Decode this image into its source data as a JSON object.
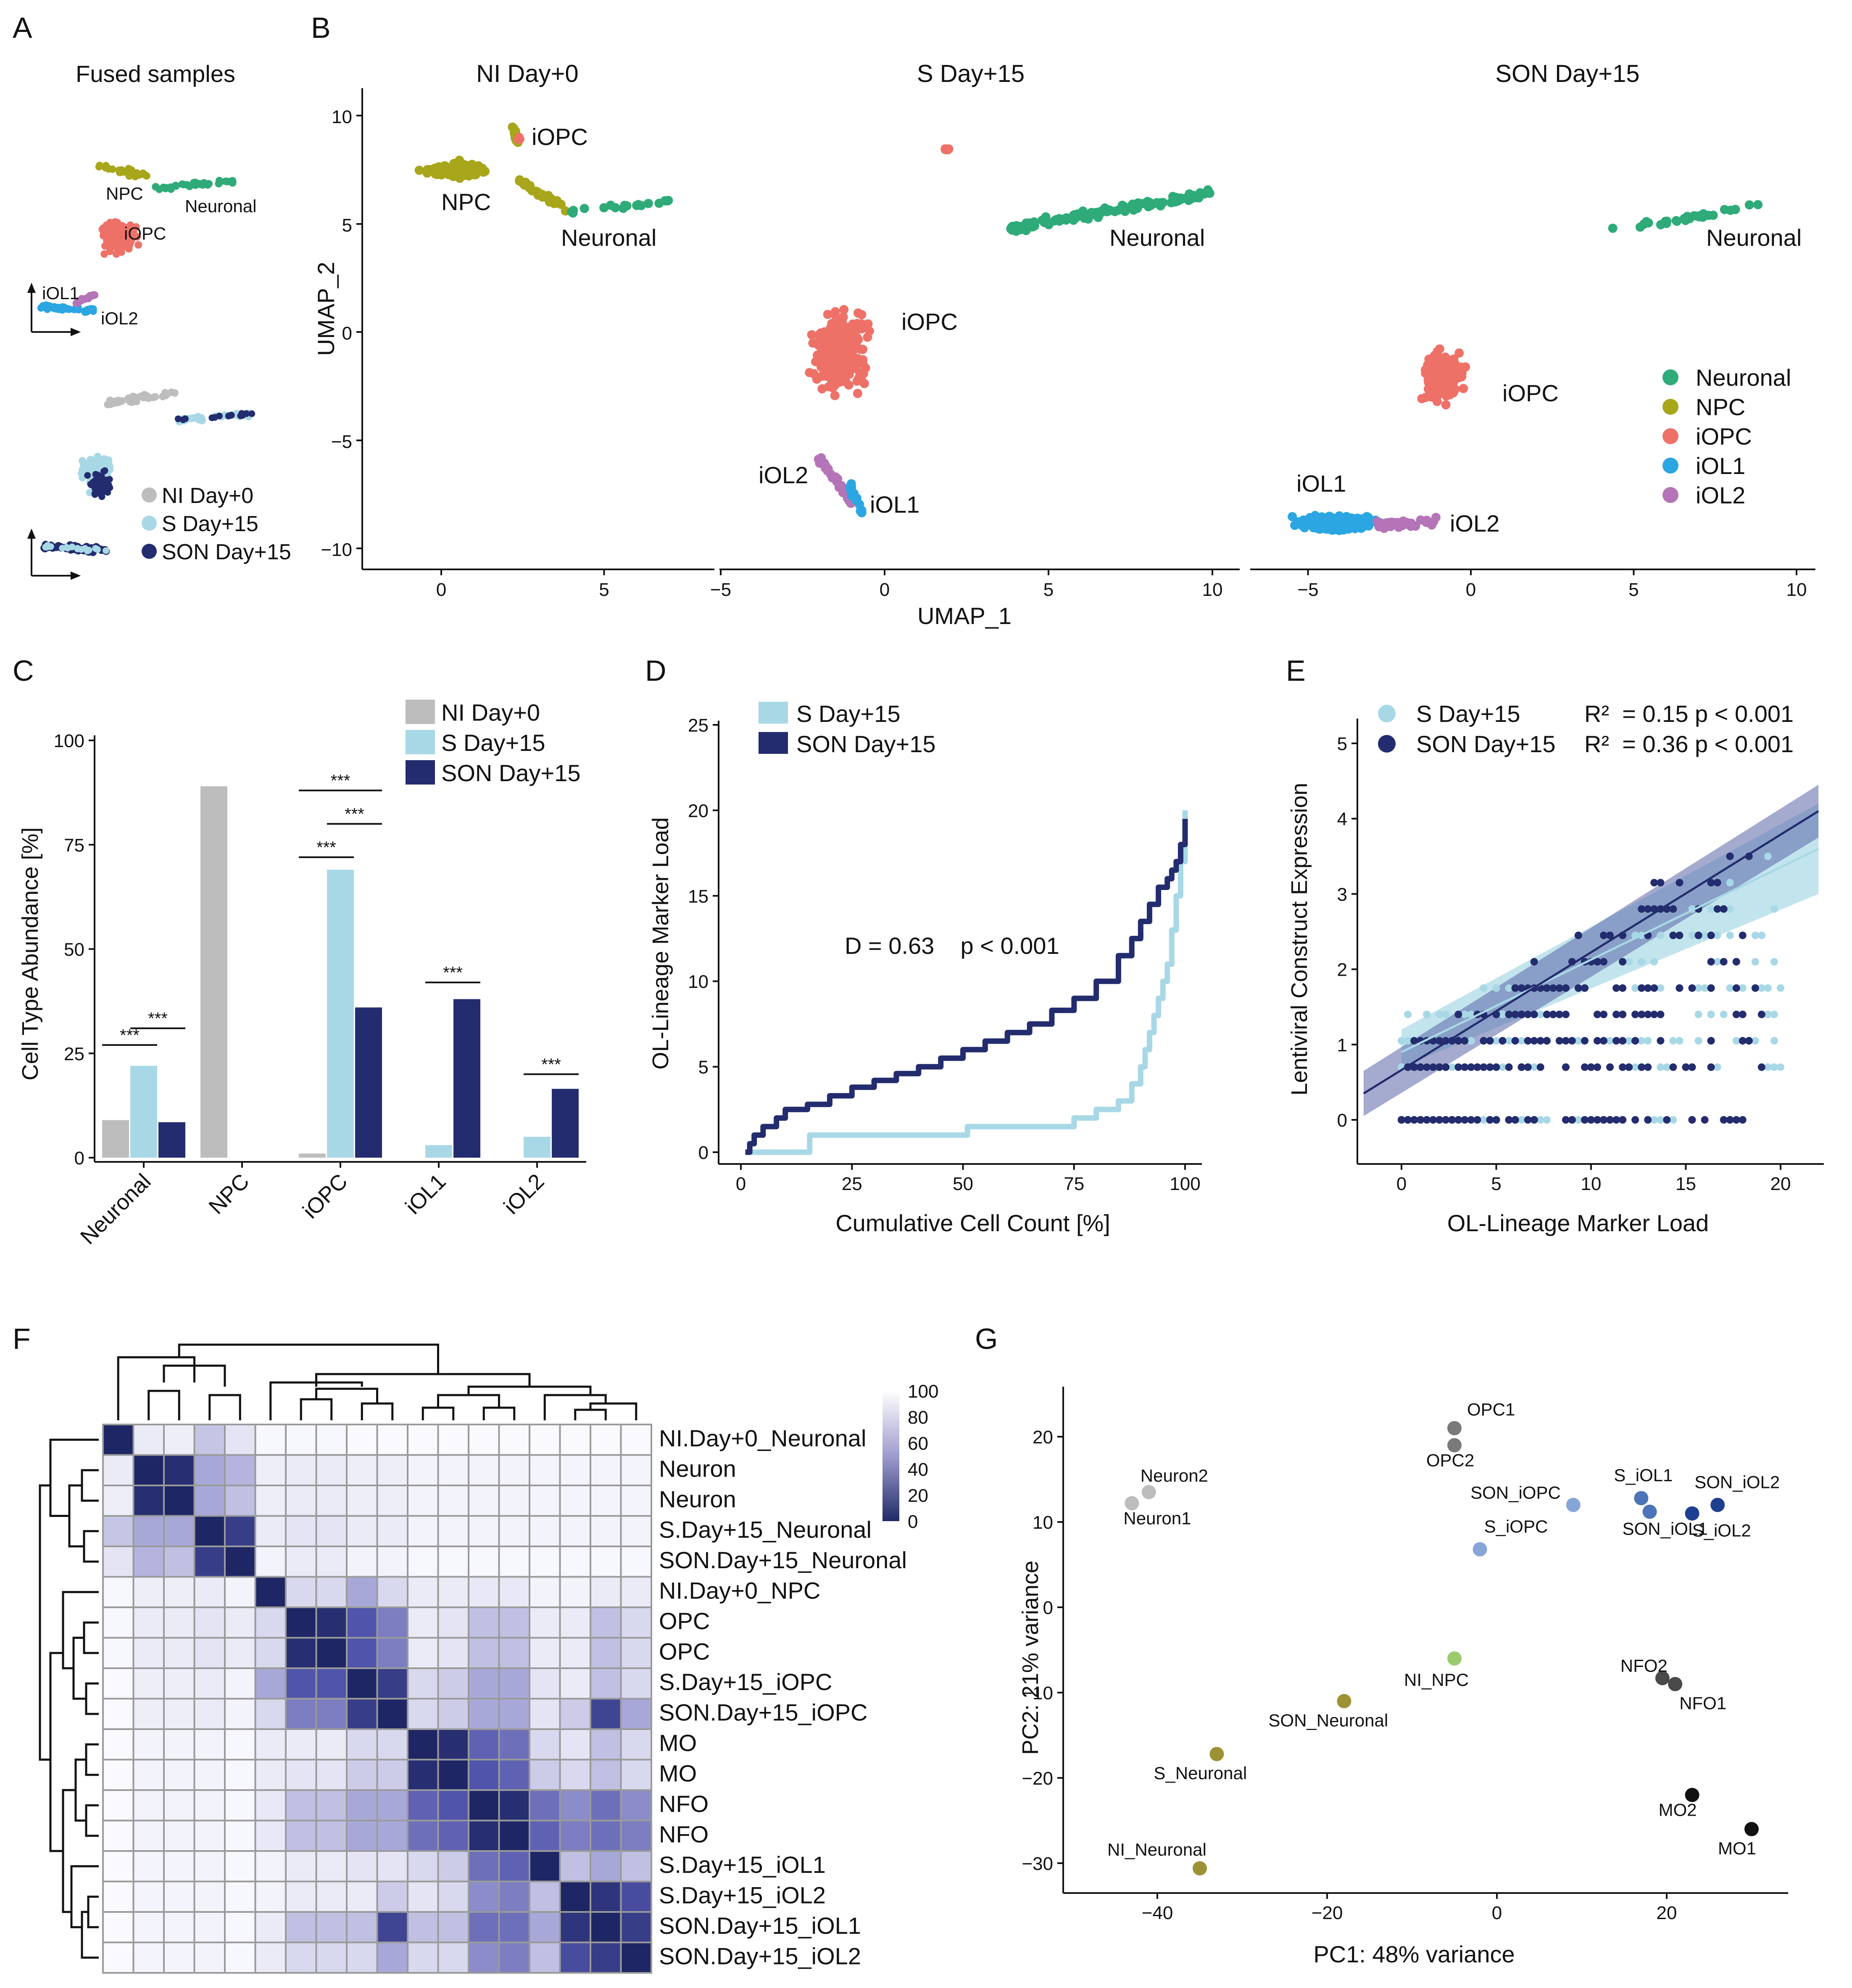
{
  "panels": {
    "A": "A",
    "B": "B",
    "C": "C",
    "D": "D",
    "E": "E",
    "F": "F",
    "G": "G"
  },
  "panelA": {
    "title": "Fused samples",
    "cluster_labels": [
      "NPC",
      "Neuronal",
      "iOPC",
      "iOL1",
      "iOL2"
    ],
    "legend": [
      "NI Day+0",
      "S Day+15",
      "SON Day+15"
    ]
  },
  "panelB": {
    "subtitles": [
      "NI Day+0",
      "S Day+15",
      "SON Day+15"
    ],
    "xlabel": "UMAP_1",
    "ylabel": "UMAP_2",
    "yticks": [
      10,
      5,
      0,
      -5,
      -10
    ],
    "xticks": [
      [
        0,
        5
      ],
      [
        -5,
        0,
        5,
        10
      ],
      [
        -5,
        0,
        5,
        10
      ]
    ],
    "cluster_labels": [
      [
        "iOPC",
        "NPC",
        "Neuronal"
      ],
      [
        "Neuronal",
        "iOPC",
        "iOL2",
        "iOL1"
      ],
      [
        "Neuronal",
        "iOPC",
        "iOL1",
        "iOL2"
      ]
    ],
    "legend": [
      "Neuronal",
      "NPC",
      "iOPC",
      "iOL1",
      "iOL2"
    ]
  },
  "colors": {
    "Neuronal": "#2eab78",
    "NPC": "#a8a61a",
    "iOPC": "#ee7168",
    "iOL1": "#2ba6e2",
    "iOL2": "#b574b7",
    "NI": "#bdbdbd",
    "S": "#a8d8e6",
    "SON": "#232c6e"
  },
  "chart_data": [
    {
      "type": "bar",
      "panel": "C",
      "categories": [
        "Neuronal",
        "NPC",
        "iOPC",
        "iOL1",
        "iOL2"
      ],
      "series": [
        {
          "name": "NI Day+0",
          "values": [
            9,
            89,
            1,
            0,
            0
          ]
        },
        {
          "name": "S Day+15",
          "values": [
            22,
            0,
            69,
            3,
            5
          ]
        },
        {
          "name": "SON Day+15",
          "values": [
            8.5,
            0,
            36,
            38,
            16.5
          ]
        }
      ],
      "ylabel": "Cell Type Abundance [%]",
      "yticks": [
        0,
        25,
        50,
        75,
        100
      ],
      "ylim": [
        0,
        100
      ],
      "significance": "***",
      "legend_position": "top-right"
    },
    {
      "type": "line",
      "panel": "D",
      "xlabel": "Cumulative Cell Count [%]",
      "ylabel": "OL-Lineage Marker Load",
      "xticks": [
        0,
        25,
        50,
        75,
        100
      ],
      "yticks": [
        0,
        5,
        10,
        15,
        20,
        25
      ],
      "xlim": [
        0,
        100
      ],
      "ylim": [
        0,
        25
      ],
      "annotation": "D = 0.63    p < 0.001",
      "series": [
        {
          "name": "S Day+15",
          "x": [
            1,
            15,
            15.5,
            50,
            51,
            70,
            75,
            80,
            85,
            88,
            90,
            91,
            92,
            93,
            94,
            95,
            96,
            97,
            98,
            99,
            100
          ],
          "y": [
            0,
            0,
            1,
            1,
            1.5,
            1.5,
            2,
            2.5,
            3,
            4,
            5,
            6,
            7,
            8,
            9,
            10,
            11,
            13,
            15,
            17,
            20
          ]
        },
        {
          "name": "SON Day+15",
          "x": [
            1,
            2,
            3,
            5,
            8,
            10,
            15,
            20,
            25,
            30,
            35,
            40,
            45,
            50,
            55,
            60,
            65,
            70,
            75,
            80,
            85,
            88,
            90,
            92,
            94,
            96,
            97,
            98,
            99,
            100
          ],
          "y": [
            0,
            0.5,
            1,
            1.5,
            2,
            2.5,
            2.8,
            3.3,
            3.8,
            4.2,
            4.6,
            5,
            5.5,
            6,
            6.5,
            7,
            7.5,
            8.3,
            9,
            10,
            11.5,
            12.5,
            13.5,
            14.5,
            15.5,
            16,
            16.5,
            17,
            18,
            19.5
          ]
        }
      ],
      "legend_position": "top-left"
    },
    {
      "type": "scatter",
      "panel": "E",
      "xlabel": "OL-Lineage Marker Load",
      "ylabel": "Lentiviral Construct Expression",
      "xticks": [
        0,
        5,
        10,
        15,
        20
      ],
      "yticks": [
        0,
        1,
        2,
        3,
        4,
        5
      ],
      "xlim": [
        -2,
        22.2
      ],
      "ylim": [
        -0.25,
        5.5
      ],
      "series": [
        {
          "name": "S Day+15",
          "stat": "R²  = 0.15 p < 0.001",
          "fit": [
            [
              0,
              0.9
            ],
            [
              22,
              3.6
            ]
          ]
        },
        {
          "name": "SON Day+15",
          "stat": "R²  = 0.36 p < 0.001",
          "fit": [
            [
              -2,
              0.35
            ],
            [
              22,
              4.1
            ]
          ]
        }
      ],
      "legend_position": "top-left"
    },
    {
      "type": "heatmap",
      "panel": "F",
      "row_labels": [
        "NI.Day+0_Neuronal",
        "Neuron",
        "Neuron",
        "S.Day+15_Neuronal",
        "SON.Day+15_Neuronal",
        "NI.Day+0_NPC",
        "OPC",
        "OPC",
        "S.Day+15_iOPC",
        "SON.Day+15_iOPC",
        "MO",
        "MO",
        "NFO",
        "NFO",
        "S.Day+15_iOL1",
        "S.Day+15_iOL2",
        "SON.Day+15_iOL1",
        "SON.Day+15_iOL2"
      ],
      "colorbar_ticks": [
        100,
        80,
        60,
        40,
        20,
        0
      ],
      "values": [
        [
          0,
          90,
          92,
          72,
          85,
          98,
          98,
          98,
          99,
          99,
          99,
          99,
          99,
          99,
          99,
          99,
          99,
          99
        ],
        [
          90,
          0,
          5,
          60,
          65,
          92,
          90,
          90,
          92,
          92,
          95,
          95,
          95,
          95,
          96,
          96,
          96,
          96
        ],
        [
          92,
          5,
          0,
          60,
          70,
          92,
          90,
          90,
          92,
          92,
          95,
          95,
          95,
          95,
          96,
          96,
          96,
          96
        ],
        [
          72,
          60,
          60,
          0,
          15,
          90,
          85,
          85,
          90,
          90,
          95,
          95,
          95,
          95,
          95,
          95,
          95,
          95
        ],
        [
          85,
          65,
          70,
          15,
          0,
          95,
          90,
          90,
          95,
          95,
          98,
          98,
          98,
          98,
          98,
          98,
          98,
          98
        ],
        [
          98,
          92,
          92,
          90,
          95,
          0,
          80,
          80,
          60,
          80,
          90,
          90,
          88,
          88,
          95,
          95,
          90,
          90
        ],
        [
          98,
          90,
          90,
          85,
          90,
          80,
          0,
          5,
          30,
          45,
          90,
          85,
          70,
          70,
          90,
          90,
          70,
          80
        ],
        [
          98,
          90,
          90,
          85,
          90,
          80,
          5,
          0,
          30,
          45,
          90,
          85,
          70,
          70,
          90,
          90,
          70,
          80
        ],
        [
          99,
          92,
          92,
          90,
          95,
          60,
          30,
          30,
          0,
          15,
          80,
          75,
          60,
          60,
          85,
          90,
          70,
          80
        ],
        [
          99,
          92,
          92,
          90,
          95,
          80,
          45,
          45,
          15,
          0,
          80,
          75,
          60,
          60,
          85,
          75,
          20,
          60
        ],
        [
          99,
          95,
          95,
          95,
          98,
          90,
          90,
          90,
          80,
          80,
          0,
          5,
          35,
          40,
          80,
          85,
          70,
          80
        ],
        [
          99,
          95,
          95,
          95,
          98,
          90,
          85,
          85,
          75,
          75,
          5,
          0,
          30,
          35,
          75,
          80,
          70,
          80
        ],
        [
          99,
          95,
          95,
          95,
          98,
          88,
          70,
          70,
          60,
          60,
          35,
          30,
          0,
          5,
          40,
          50,
          40,
          50
        ],
        [
          99,
          95,
          95,
          95,
          98,
          88,
          70,
          70,
          60,
          60,
          40,
          35,
          5,
          0,
          35,
          45,
          40,
          45
        ],
        [
          99,
          96,
          96,
          95,
          98,
          95,
          90,
          90,
          85,
          85,
          80,
          75,
          40,
          35,
          0,
          70,
          60,
          70
        ],
        [
          99,
          96,
          96,
          95,
          98,
          95,
          90,
          90,
          90,
          75,
          85,
          80,
          50,
          45,
          70,
          0,
          10,
          25
        ],
        [
          99,
          96,
          96,
          95,
          98,
          90,
          70,
          70,
          70,
          20,
          70,
          70,
          40,
          40,
          60,
          10,
          0,
          15
        ],
        [
          99,
          96,
          96,
          95,
          98,
          90,
          80,
          80,
          80,
          60,
          80,
          80,
          50,
          45,
          70,
          25,
          15,
          0
        ]
      ]
    },
    {
      "type": "scatter",
      "panel": "G",
      "xlabel": "PC1: 48% variance",
      "ylabel": "PC2: 21% variance",
      "xticks": [
        -40,
        -20,
        0,
        20
      ],
      "yticks": [
        20,
        10,
        0,
        -10,
        -20,
        -30
      ],
      "xlim": [
        -46,
        34
      ],
      "ylim": [
        -33,
        24
      ],
      "points": [
        {
          "label": "OPC1",
          "x": -5,
          "y": 21,
          "color": "#7a7a7a"
        },
        {
          "label": "OPC2",
          "x": -5,
          "y": 19,
          "color": "#7a7a7a"
        },
        {
          "label": "Neuron2",
          "x": -41,
          "y": 13.5,
          "color": "#bdbdbd"
        },
        {
          "label": "Neuron1",
          "x": -43,
          "y": 12.2,
          "color": "#bdbdbd"
        },
        {
          "label": "SON_iOPC",
          "x": 9,
          "y": 12,
          "color": "#86a6d8"
        },
        {
          "label": "S_iOPC",
          "x": -2,
          "y": 6.8,
          "color": "#86a6d8"
        },
        {
          "label": "S_iOL1",
          "x": 17,
          "y": 12.8,
          "color": "#4d74b8"
        },
        {
          "label": "SON_iOL1",
          "x": 18,
          "y": 11.2,
          "color": "#4d74b8"
        },
        {
          "label": "S_iOL2",
          "x": 23,
          "y": 11,
          "color": "#1e3f8f"
        },
        {
          "label": "SON_iOL2",
          "x": 26,
          "y": 12,
          "color": "#1e3f8f"
        },
        {
          "label": "NI_NPC",
          "x": -5,
          "y": -6,
          "color": "#9ccb6e"
        },
        {
          "label": "SON_Neuronal",
          "x": -18,
          "y": -11,
          "color": "#9c9234"
        },
        {
          "label": "S_Neuronal",
          "x": -33,
          "y": -17.2,
          "color": "#9c9234"
        },
        {
          "label": "NI_Neuronal",
          "x": -35,
          "y": -30.6,
          "color": "#9c9234"
        },
        {
          "label": "NFO2",
          "x": 19.5,
          "y": -8.3,
          "color": "#4a4a4a"
        },
        {
          "label": "NFO1",
          "x": 21,
          "y": -9,
          "color": "#4a4a4a"
        },
        {
          "label": "MO2",
          "x": 23,
          "y": -22,
          "color": "#111111"
        },
        {
          "label": "MO1",
          "x": 30,
          "y": -26,
          "color": "#111111"
        }
      ]
    }
  ]
}
